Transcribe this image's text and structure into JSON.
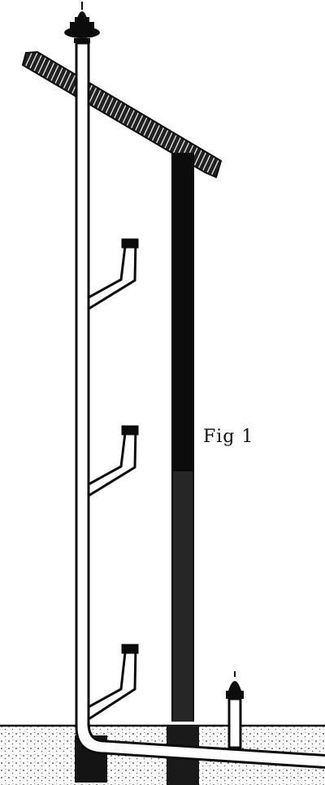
{
  "figure": {
    "label": "Fig 1",
    "ink_color": "#0c0c0c",
    "paper_color": "#ffffff",
    "hatch_color": "#3a3a3a"
  }
}
